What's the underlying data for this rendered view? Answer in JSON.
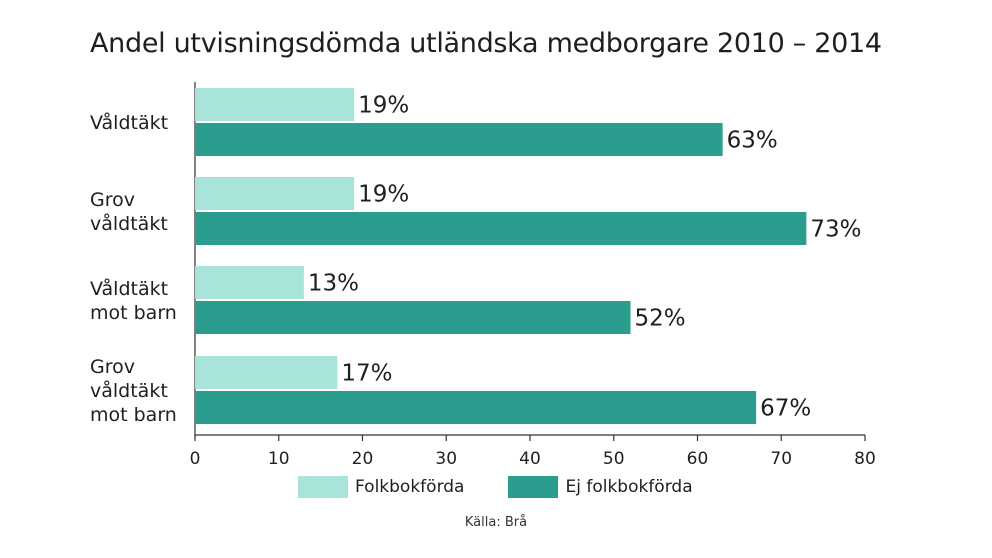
{
  "chart_data": {
    "type": "bar",
    "orientation": "horizontal",
    "title": "Andel utvisningsdömda utländska medborgare 2010 – 2014",
    "categories": [
      [
        "Våldtäkt"
      ],
      [
        "Grov",
        "våldtäkt"
      ],
      [
        "Våldtäkt",
        "mot barn"
      ],
      [
        "Grov",
        "våldtäkt",
        "mot barn"
      ]
    ],
    "series": [
      {
        "name": "Folkbokförda",
        "values": [
          19,
          19,
          13,
          17
        ],
        "labels": [
          "19%",
          "19%",
          "13%",
          "17%"
        ],
        "color": "#a8e4d9"
      },
      {
        "name": "Ej folkbokförda",
        "values": [
          63,
          73,
          52,
          67
        ],
        "labels": [
          "63%",
          "73%",
          "52%",
          "67%"
        ],
        "color": "#2a9d8f"
      }
    ],
    "xlim": [
      0,
      80
    ],
    "xticks": [
      "0",
      "10",
      "20",
      "30",
      "40",
      "50",
      "60",
      "70",
      "80"
    ],
    "legend_position": "bottom",
    "grid": false
  },
  "source": "Källa: Brå"
}
